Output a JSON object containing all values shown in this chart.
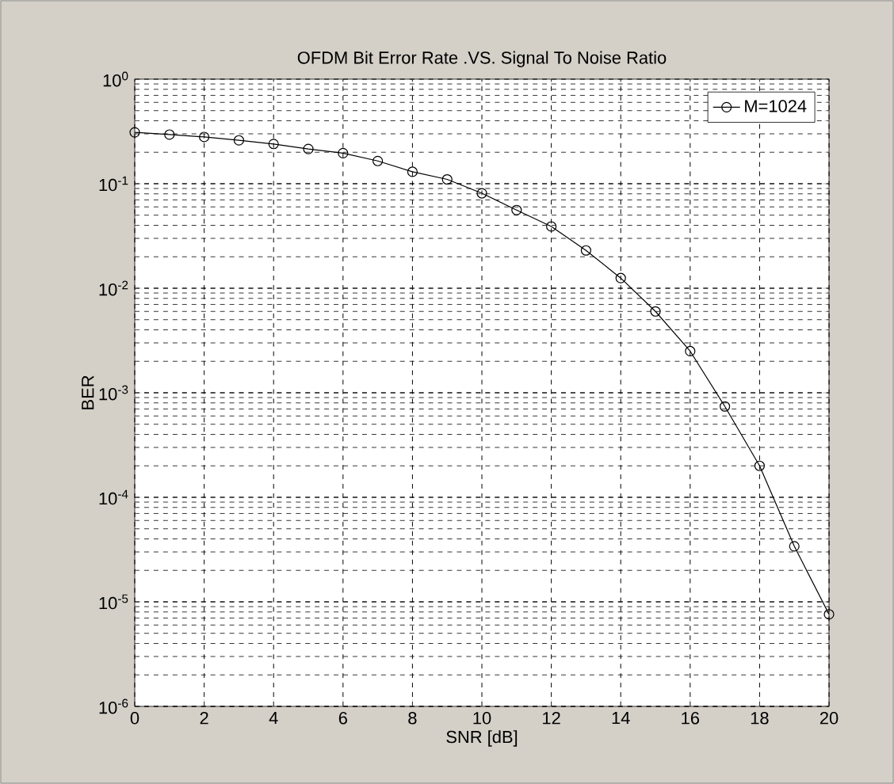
{
  "chart_data": {
    "type": "line",
    "title": "OFDM Bit Error Rate .VS. Signal To Noise Ratio",
    "xlabel": "SNR [dB]",
    "ylabel": "BER",
    "x": [
      0,
      1,
      2,
      3,
      4,
      5,
      6,
      7,
      8,
      9,
      10,
      11,
      12,
      13,
      14,
      15,
      16,
      17,
      18,
      19,
      20
    ],
    "series": [
      {
        "name": "M=1024",
        "color": "#000000",
        "values": [
          0.31,
          0.295,
          0.28,
          0.26,
          0.24,
          0.215,
          0.196,
          0.165,
          0.13,
          0.11,
          0.081,
          0.056,
          0.039,
          0.023,
          0.0125,
          0.006,
          0.0025,
          0.00074,
          0.0002,
          3.4e-05,
          7.6e-06
        ]
      }
    ],
    "log": "y",
    "grid": true,
    "legend": "top right",
    "marker": "circle",
    "line_style": "solid",
    "xlim": [
      0,
      20
    ],
    "ylim": [
      1e-06,
      1
    ],
    "xticks": [
      0,
      2,
      4,
      6,
      8,
      10,
      12,
      14,
      16,
      18,
      20
    ],
    "yticks": [
      {
        "value": 1e-06,
        "label": "10$^{-6}$"
      },
      {
        "value": 1e-05,
        "label": "10$^{-5}$"
      },
      {
        "value": 0.0001,
        "label": "10$^{-4}$"
      },
      {
        "value": 0.001,
        "label": "10$^{-3}$"
      },
      {
        "value": 0.01,
        "label": "10$^{-2}$"
      },
      {
        "value": 0.1,
        "label": "10$^{-1}$"
      },
      {
        "value": 1,
        "label": "10$^{0}$"
      }
    ]
  }
}
